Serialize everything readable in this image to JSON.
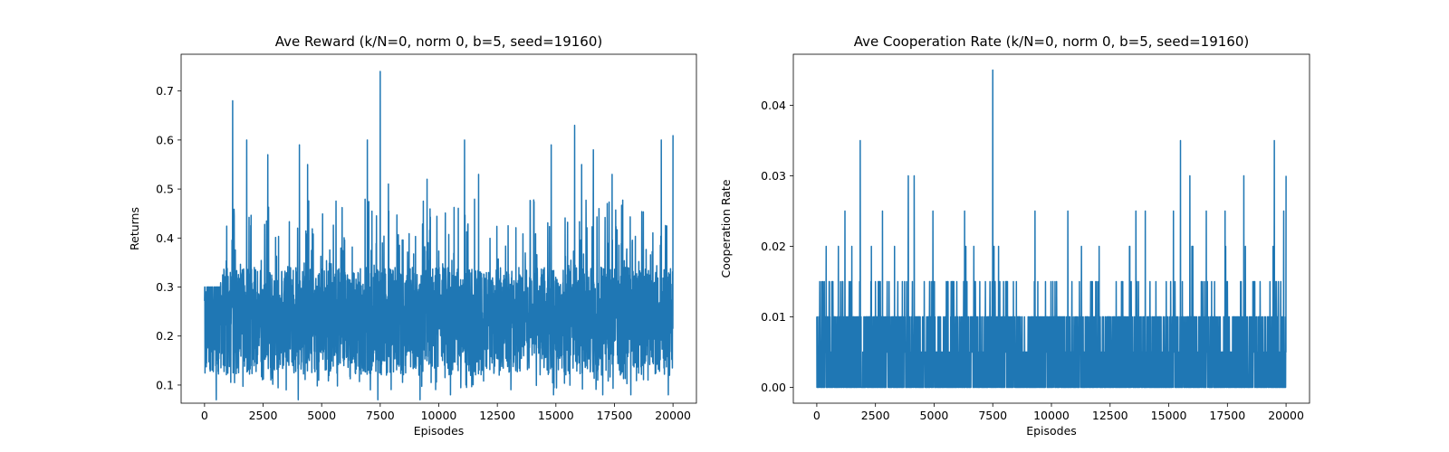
{
  "figure": {
    "background": "#ffffff"
  },
  "chart_data": [
    {
      "type": "line",
      "title": "Ave Reward (k/N=0, norm 0, b=5, seed=19160)",
      "xlabel": "Episodes",
      "ylabel": "Returns",
      "xlim": [
        -1000,
        21000
      ],
      "ylim": [
        0.063,
        0.775
      ],
      "xticks": [
        0,
        2500,
        5000,
        7500,
        10000,
        12500,
        15000,
        17500,
        20000
      ],
      "yticks": [
        0.1,
        0.2,
        0.3,
        0.4,
        0.5,
        0.6,
        0.7
      ],
      "ytick_labels": [
        "0.1",
        "0.2",
        "0.3",
        "0.4",
        "0.5",
        "0.6",
        "0.7"
      ],
      "color": "#1f77b4",
      "legend": "none",
      "grid": false,
      "series": [
        {
          "x_range": [
            0,
            20000
          ],
          "typical_band": [
            0.12,
            0.34
          ],
          "min": 0.07,
          "max": 0.74,
          "peaks": [
            {
              "x": 1200,
              "y": 0.68
            },
            {
              "x": 1800,
              "y": 0.6
            },
            {
              "x": 2700,
              "y": 0.57
            },
            {
              "x": 4050,
              "y": 0.59
            },
            {
              "x": 4400,
              "y": 0.55
            },
            {
              "x": 6950,
              "y": 0.6
            },
            {
              "x": 7500,
              "y": 0.74
            },
            {
              "x": 7850,
              "y": 0.51
            },
            {
              "x": 9500,
              "y": 0.52
            },
            {
              "x": 11100,
              "y": 0.6
            },
            {
              "x": 11700,
              "y": 0.53
            },
            {
              "x": 14800,
              "y": 0.59
            },
            {
              "x": 15800,
              "y": 0.63
            },
            {
              "x": 16100,
              "y": 0.55
            },
            {
              "x": 16600,
              "y": 0.58
            },
            {
              "x": 17400,
              "y": 0.53
            },
            {
              "x": 19500,
              "y": 0.6
            },
            {
              "x": 20000,
              "y": 0.61
            }
          ],
          "troughs": [
            {
              "x": 500,
              "y": 0.07
            },
            {
              "x": 4000,
              "y": 0.07
            },
            {
              "x": 7400,
              "y": 0.07
            },
            {
              "x": 9200,
              "y": 0.07
            },
            {
              "x": 10500,
              "y": 0.08
            },
            {
              "x": 14900,
              "y": 0.08
            },
            {
              "x": 17000,
              "y": 0.08
            },
            {
              "x": 18200,
              "y": 0.08
            },
            {
              "x": 19800,
              "y": 0.08
            }
          ]
        }
      ]
    },
    {
      "type": "line",
      "title": "Ave Cooperation Rate (k/N=0, norm 0, b=5, seed=19160)",
      "xlabel": "Episodes",
      "ylabel": "Cooperation Rate",
      "xlim": [
        -1000,
        21000
      ],
      "ylim": [
        -0.00225,
        0.04725
      ],
      "xticks": [
        0,
        2500,
        5000,
        7500,
        10000,
        12500,
        15000,
        17500,
        20000
      ],
      "yticks": [
        0,
        0.01,
        0.02,
        0.03,
        0.04
      ],
      "ytick_labels": [
        "0.00",
        "0.01",
        "0.02",
        "0.03",
        "0.04"
      ],
      "color": "#1f77b4",
      "legend": "none",
      "grid": false,
      "series": [
        {
          "x_range": [
            0,
            20000
          ],
          "levels": [
            0,
            0.005,
            0.01,
            0.015,
            0.02,
            0.025,
            0.03,
            0.035,
            0.045
          ],
          "dense_band": [
            0,
            0.01
          ],
          "peaks": [
            {
              "x": 1200,
              "y": 0.025
            },
            {
              "x": 1850,
              "y": 0.035
            },
            {
              "x": 2800,
              "y": 0.025
            },
            {
              "x": 3900,
              "y": 0.03
            },
            {
              "x": 4150,
              "y": 0.03
            },
            {
              "x": 4950,
              "y": 0.025
            },
            {
              "x": 6300,
              "y": 0.025
            },
            {
              "x": 7500,
              "y": 0.045
            },
            {
              "x": 9300,
              "y": 0.025
            },
            {
              "x": 10700,
              "y": 0.025
            },
            {
              "x": 13600,
              "y": 0.025
            },
            {
              "x": 14000,
              "y": 0.025
            },
            {
              "x": 15200,
              "y": 0.025
            },
            {
              "x": 15500,
              "y": 0.035
            },
            {
              "x": 15900,
              "y": 0.03
            },
            {
              "x": 16600,
              "y": 0.025
            },
            {
              "x": 17400,
              "y": 0.025
            },
            {
              "x": 18200,
              "y": 0.03
            },
            {
              "x": 19500,
              "y": 0.035
            },
            {
              "x": 19900,
              "y": 0.025
            },
            {
              "x": 20000,
              "y": 0.03
            }
          ]
        }
      ]
    }
  ]
}
